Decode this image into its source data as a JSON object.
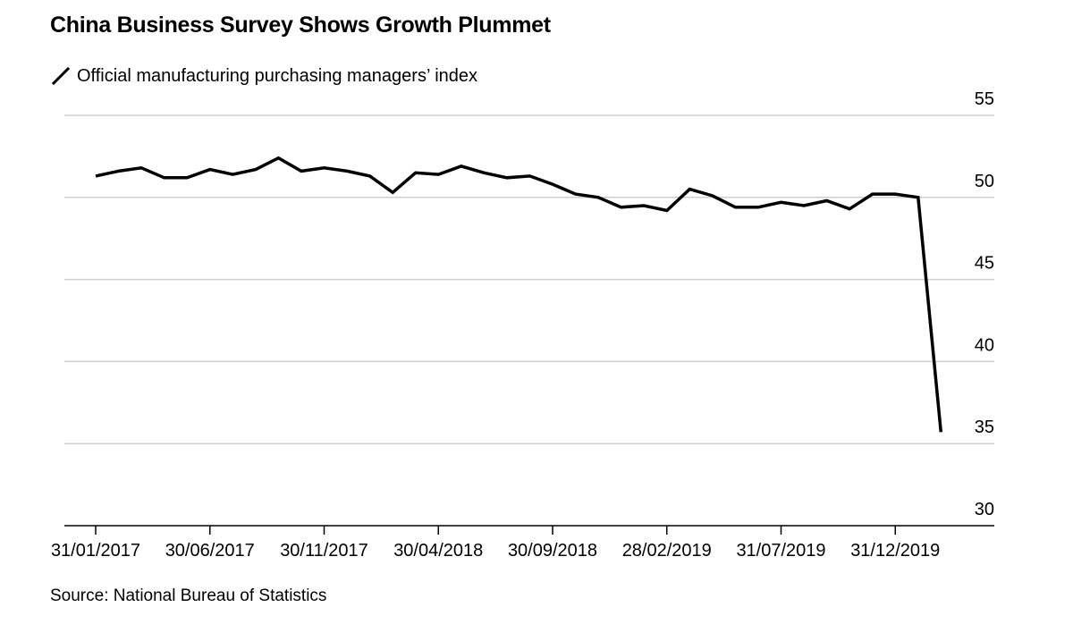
{
  "chart_data": {
    "type": "line",
    "title": "China Business Survey Shows Growth Plummet",
    "source": "Source: National Bureau of Statistics",
    "xlabel": "",
    "ylabel": "",
    "ylim": [
      30,
      55
    ],
    "y_ticks": [
      "55",
      "50",
      "45",
      "40",
      "35",
      "30"
    ],
    "y_tick_values": [
      55,
      50,
      45,
      40,
      35,
      30
    ],
    "x_tick_labels": [
      "31/01/2017",
      "30/06/2017",
      "30/11/2017",
      "30/04/2018",
      "30/09/2018",
      "28/02/2019",
      "31/07/2019",
      "31/12/2019"
    ],
    "x_tick_indices": [
      0,
      5,
      10,
      15,
      20,
      25,
      30,
      35
    ],
    "series": [
      {
        "name": "Official manufacturing purchasing managers’ index",
        "color": "#000000",
        "x": [
          "01/2017",
          "02/2017",
          "03/2017",
          "04/2017",
          "05/2017",
          "06/2017",
          "07/2017",
          "08/2017",
          "09/2017",
          "10/2017",
          "11/2017",
          "12/2017",
          "01/2018",
          "02/2018",
          "03/2018",
          "04/2018",
          "05/2018",
          "06/2018",
          "07/2018",
          "08/2018",
          "09/2018",
          "10/2018",
          "11/2018",
          "12/2018",
          "01/2019",
          "02/2019",
          "03/2019",
          "04/2019",
          "05/2019",
          "06/2019",
          "07/2019",
          "08/2019",
          "09/2019",
          "10/2019",
          "11/2019",
          "12/2019",
          "01/2020",
          "02/2020"
        ],
        "values": [
          51.3,
          51.6,
          51.8,
          51.2,
          51.2,
          51.7,
          51.4,
          51.7,
          52.4,
          51.6,
          51.8,
          51.6,
          51.3,
          50.3,
          51.5,
          51.4,
          51.9,
          51.5,
          51.2,
          51.3,
          50.8,
          50.2,
          50.0,
          49.4,
          49.5,
          49.2,
          50.5,
          50.1,
          49.4,
          49.4,
          49.7,
          49.5,
          49.8,
          49.3,
          50.2,
          50.2,
          50.0,
          35.7
        ]
      }
    ]
  }
}
